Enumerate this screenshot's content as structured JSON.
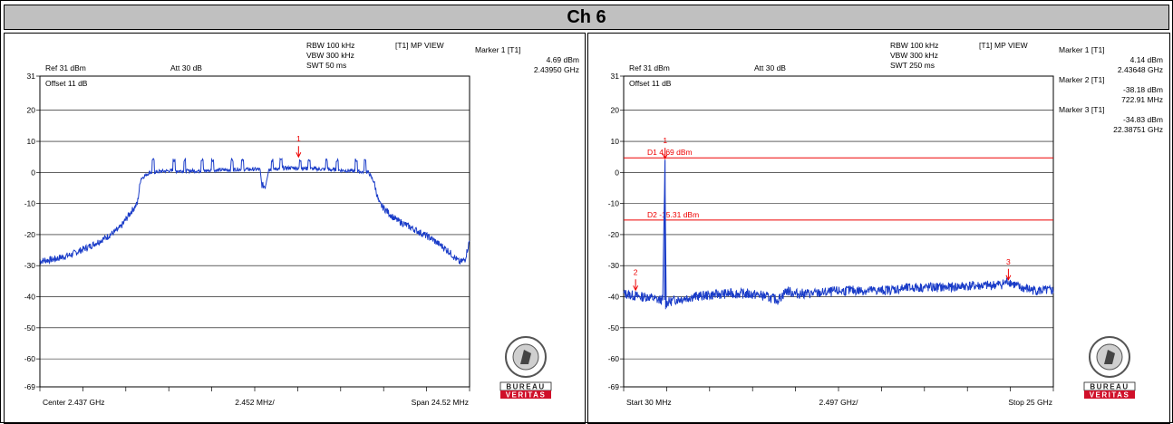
{
  "page": {
    "title": "Ch 6"
  },
  "chart_data": [
    {
      "type": "line",
      "header": {
        "rbw": "RBW 100 kHz",
        "vbw": "VBW 300 kHz",
        "swt": "SWT 50 ms",
        "mode": "[T1] MP VIEW",
        "ref": "Ref 31 dBm",
        "att": "Att  30 dB",
        "offset": "Offset 11 dB"
      },
      "markers_text": [
        {
          "name": "Marker 1 [T1]",
          "level": "4.69 dBm",
          "freq": "2.43950 GHz"
        }
      ],
      "x_labels": {
        "left": "Center 2.437 GHz",
        "center": "2.452 MHz/",
        "right": "Span 24.52 MHz"
      },
      "ytick_labels": [
        "31",
        "20",
        "10",
        "0",
        "-10",
        "-20",
        "-30",
        "-40",
        "-50",
        "-60",
        "-69"
      ],
      "ylim": [
        -69,
        31
      ],
      "xlim": [
        2424.74,
        2449.26
      ],
      "trace_outline": [
        [
          2424.74,
          -28.5
        ],
        [
          2425.5,
          -28
        ],
        [
          2426.5,
          -26.5
        ],
        [
          2427.5,
          -24
        ],
        [
          2428.5,
          -21
        ],
        [
          2429.3,
          -18
        ],
        [
          2429.9,
          -13
        ],
        [
          2430.3,
          -10
        ],
        [
          2430.5,
          -2
        ],
        [
          2431,
          0
        ],
        [
          2432,
          0.5
        ],
        [
          2434,
          0.5
        ],
        [
          2436,
          1
        ],
        [
          2437.3,
          1
        ],
        [
          2437.4,
          -4
        ],
        [
          2437.6,
          -4.5
        ],
        [
          2437.8,
          1
        ],
        [
          2439,
          1.5
        ],
        [
          2441,
          1
        ],
        [
          2442.5,
          0.5
        ],
        [
          2443.5,
          0
        ],
        [
          2443.8,
          -3
        ],
        [
          2444.1,
          -10
        ],
        [
          2445,
          -15
        ],
        [
          2446,
          -18
        ],
        [
          2447,
          -21
        ],
        [
          2448,
          -25
        ],
        [
          2448.7,
          -29
        ],
        [
          2449.0,
          -28
        ],
        [
          2449.26,
          -22
        ]
      ],
      "spikes_x": [
        2431.2,
        2432.4,
        2433.0,
        2434.0,
        2434.6,
        2435.7,
        2436.3,
        2438.0,
        2438.5,
        2439.6,
        2440.1,
        2441.1,
        2441.7,
        2442.8,
        2443.3
      ],
      "marker_points": [
        {
          "label": "1",
          "x": 2439.5,
          "y": 4.69
        }
      ]
    },
    {
      "type": "line",
      "header": {
        "rbw": "RBW 100 kHz",
        "vbw": "VBW 300 kHz",
        "swt": "SWT 250 ms",
        "mode": "[T1] MP VIEW",
        "ref": "Ref 31 dBm",
        "att": "Att  30 dB",
        "offset": "Offset 11 dB"
      },
      "markers_text": [
        {
          "name": "Marker 1 [T1]",
          "level": "4.14 dBm",
          "freq": "2.43648 GHz"
        },
        {
          "name": "Marker 2 [T1]",
          "level": "-38.18 dBm",
          "freq": "722.91 MHz"
        },
        {
          "name": "Marker 3 [T1]",
          "level": "-34.83 dBm",
          "freq": "22.38751 GHz"
        }
      ],
      "x_labels": {
        "left": "Start 30 MHz",
        "center": "2.497 GHz/",
        "right": "Stop 25 GHz"
      },
      "ytick_labels": [
        "31",
        "20",
        "10",
        "0",
        "-10",
        "-20",
        "-30",
        "-40",
        "-50",
        "-60",
        "-69"
      ],
      "ylim": [
        -69,
        31
      ],
      "xlim": [
        0.03,
        25
      ],
      "hlines": [
        {
          "label": "D1 4.69 dBm",
          "y": 4.69
        },
        {
          "label": "D2 -15.31 dBm",
          "y": -15.31
        }
      ],
      "trace_outline": [
        [
          0.03,
          -39
        ],
        [
          0.5,
          -39.5
        ],
        [
          1.0,
          -40
        ],
        [
          1.5,
          -40
        ],
        [
          2.0,
          -41
        ],
        [
          2.3,
          -41
        ],
        [
          2.43,
          4.14
        ],
        [
          2.5,
          -42
        ],
        [
          3.0,
          -41
        ],
        [
          4,
          -40
        ],
        [
          5,
          -39.5
        ],
        [
          6,
          -39
        ],
        [
          7,
          -39
        ],
        [
          8,
          -39.5
        ],
        [
          9,
          -41
        ],
        [
          9.5,
          -38
        ],
        [
          10,
          -39
        ],
        [
          11,
          -39
        ],
        [
          12,
          -38.5
        ],
        [
          13,
          -38
        ],
        [
          14,
          -38
        ],
        [
          15,
          -38
        ],
        [
          16,
          -37.5
        ],
        [
          17,
          -37
        ],
        [
          18,
          -37
        ],
        [
          19,
          -37
        ],
        [
          20,
          -36.5
        ],
        [
          21,
          -36.5
        ],
        [
          22,
          -36
        ],
        [
          22.4,
          -35
        ],
        [
          23,
          -37
        ],
        [
          24,
          -38
        ],
        [
          25,
          -38
        ]
      ],
      "marker_points": [
        {
          "label": "1",
          "x": 2.43648,
          "y": 4.14
        },
        {
          "label": "2",
          "x": 0.72291,
          "y": -38.18
        },
        {
          "label": "3",
          "x": 22.38751,
          "y": -34.83
        }
      ]
    }
  ],
  "logo": {
    "line1": "BUREAU",
    "line2": "VERITAS",
    "seal_text": "BUREAU VERITAS 1828"
  }
}
